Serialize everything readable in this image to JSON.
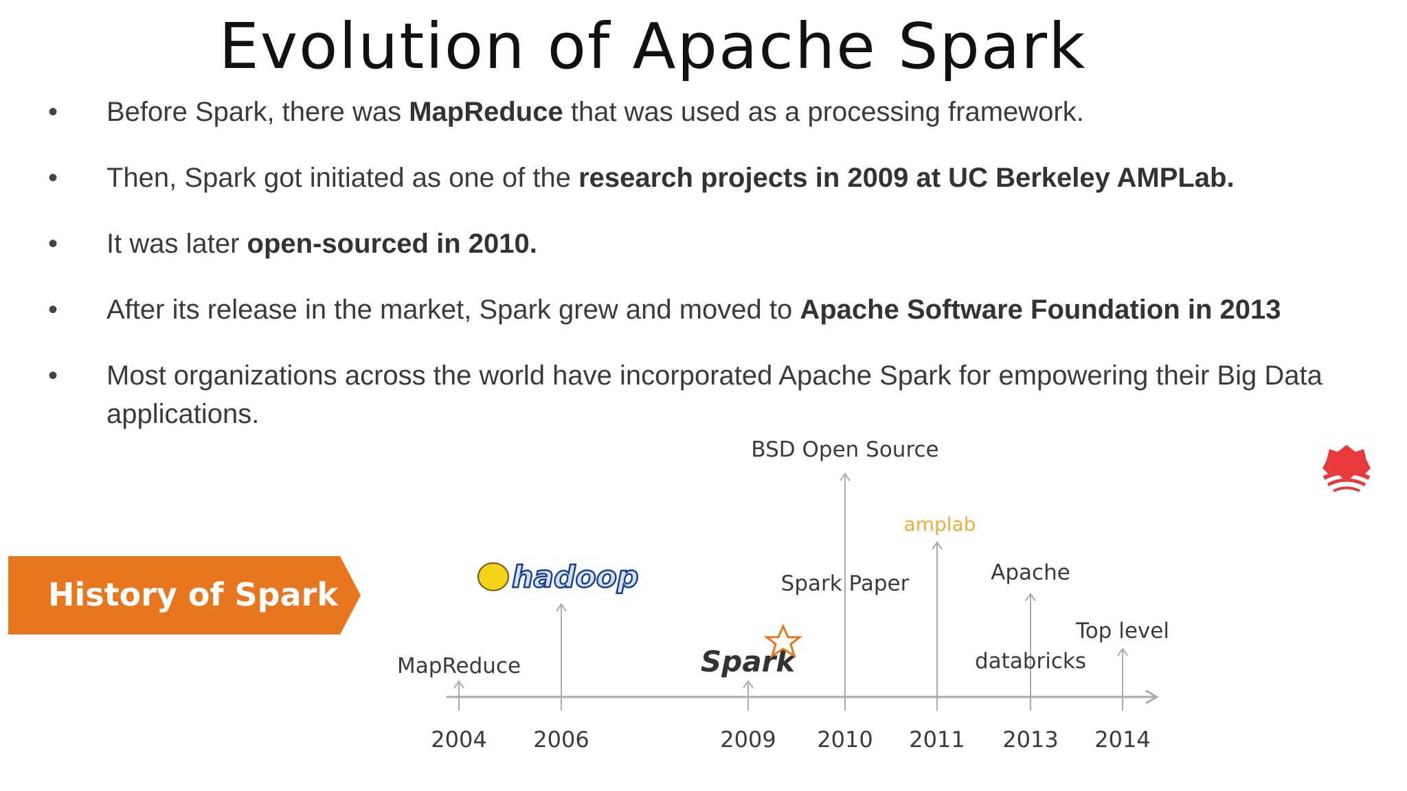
{
  "title": "Evolution of Apache Spark",
  "bullets": [
    {
      "parts": [
        {
          "text": "Before Spark, there was ",
          "bold": false
        },
        {
          "text": "MapReduce",
          "bold": true
        },
        {
          "text": " that was used as a processing framework.",
          "bold": false
        }
      ]
    },
    {
      "parts": [
        {
          "text": "Then, Spark got initiated as one of the ",
          "bold": false
        },
        {
          "text": "research projects in 2009 at UC Berkeley AMPLab.",
          "bold": true
        }
      ]
    },
    {
      "parts": [
        {
          "text": "It was later ",
          "bold": false
        },
        {
          "text": "open-sourced in 2010.",
          "bold": true
        }
      ]
    },
    {
      "parts": [
        {
          "text": "After its release in the market, Spark grew and moved to ",
          "bold": false
        },
        {
          "text": "Apache Software Foundation in 2013",
          "bold": true
        }
      ]
    },
    {
      "parts": [
        {
          "text": "Most organizations across the world have incorporated Apache Spark for empowering their Big Data applications.",
          "bold": false
        }
      ]
    }
  ],
  "timeline": {
    "banner_label": "History of Spark",
    "years": [
      "2004",
      "2006",
      "2009",
      "2010",
      "2011",
      "2013",
      "2014"
    ],
    "events": {
      "mapreduce": "MapReduce",
      "hadoop_logo": "hadoop",
      "spark_logo": "Spark",
      "spark_paper": "Spark Paper",
      "bsd": "BSD Open Source",
      "amplab": "amplab",
      "apache": "Apache",
      "databricks": "databricks",
      "top_level": "Top level"
    },
    "colors": {
      "banner": "#e8761e",
      "axis": "#aaaaaa",
      "hadoop": "#1b3d8f",
      "hadoop_elephant": "#f2d21b",
      "spark_star": "#e8761e",
      "amplab": "#e8b13a"
    }
  },
  "logo": {
    "icon": "red-fan-logo-icon",
    "color": "#e8393d"
  }
}
